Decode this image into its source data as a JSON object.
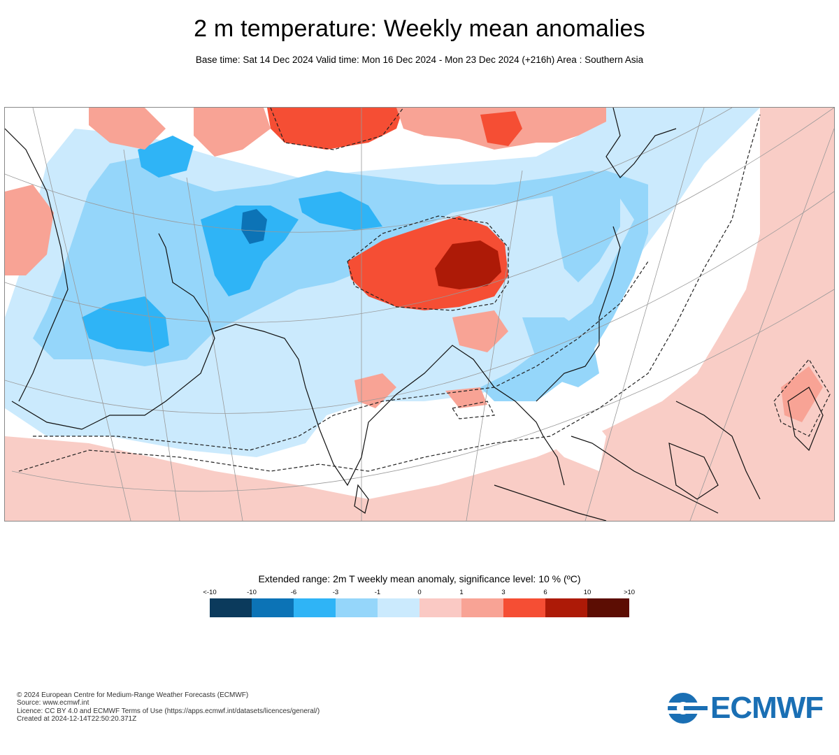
{
  "header": {
    "title": "2 m temperature: Weekly mean anomalies",
    "subtitle": "Base time: Sat 14 Dec 2024 Valid time: Mon 16 Dec 2024 - Mon 23 Dec 2024 (+216h) Area : Southern Asia"
  },
  "legend": {
    "title": "Extended range: 2m T weekly mean anomaly, significance level: 10 % (ºC)",
    "ticks": [
      "<-10",
      "-10",
      "-6",
      "-3",
      "-1",
      "0",
      "1",
      "3",
      "6",
      "10",
      ">10"
    ],
    "colors": [
      "#0b3a5c",
      "#0c73b6",
      "#2fb4f6",
      "#95d6fa",
      "#cbeafd",
      "#fac9c4",
      "#f8a395",
      "#f54e34",
      "#ad1a07",
      "#5c0d03"
    ]
  },
  "footer": {
    "lines": [
      "© 2024 European Centre for Medium-Range Weather Forecasts (ECMWF)",
      "Source: www.ecmwf.int",
      "Licence: CC BY 4.0 and ECMWF Terms of Use (https://apps.ecmwf.int/datasets/licences/general/)",
      "Created at 2024-12-14T22:50:20.371Z"
    ]
  },
  "logo": {
    "text": "ECMWF",
    "color": "#1a6fb4"
  },
  "map": {
    "region": "Southern Asia",
    "colors": {
      "ocean_anomaly": "#f9cdc6",
      "near_zero": "#ffffff",
      "light_blue": "#cbeafd",
      "medium_blue": "#95d6fa",
      "blue": "#2fb4f6",
      "dark_blue": "#0c73b6",
      "light_red": "#f8a395",
      "red": "#f54e34",
      "dark_red": "#ad1a07"
    }
  }
}
